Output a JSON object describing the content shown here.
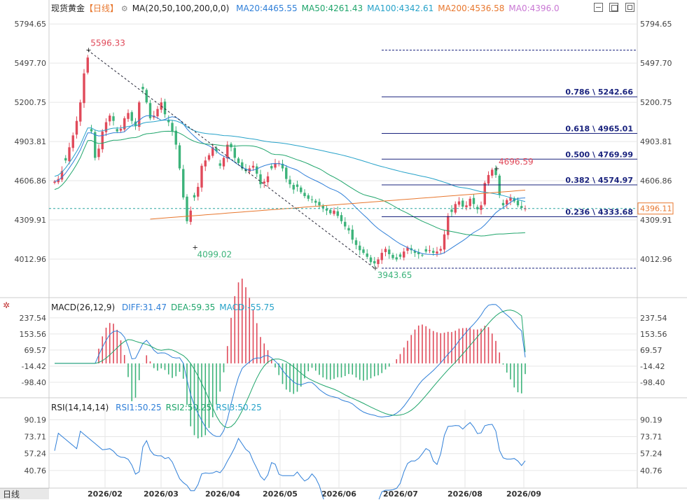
{
  "header": {
    "symbol": "现货黄金",
    "period_tag": "【日线】",
    "ma_label": "MA(20,50,100,200,0,0)",
    "ma_items": [
      {
        "text": "MA20:4465.55",
        "color": "#2f7fd8"
      },
      {
        "text": "MA50:4261.43",
        "color": "#1fa56b"
      },
      {
        "text": "MA100:4342.61",
        "color": "#26a2c9"
      },
      {
        "text": "MA200:4536.58",
        "color": "#e8772e"
      },
      {
        "text": "MA0:4396.0",
        "color": "#c978d4"
      }
    ]
  },
  "macd_header": {
    "label": "MACD(26,12,9)",
    "items": [
      {
        "text": "DIFF:31.47",
        "color": "#2f7fd8"
      },
      {
        "text": "DEA:59.35",
        "color": "#1fa56b"
      },
      {
        "text": "MACD:-55.75",
        "color": "#26a2c9"
      }
    ]
  },
  "rsi_header": {
    "label": "RSI(14,14,14)",
    "items": [
      {
        "text": "RSI1:50.25",
        "color": "#2f7fd8"
      },
      {
        "text": "RSI2:50.25",
        "color": "#1fa56b"
      },
      {
        "text": "RSI3:50.25",
        "color": "#26a2c9"
      }
    ]
  },
  "bottom_tab": "日线",
  "colors": {
    "up": "#e04a5a",
    "down": "#3cb37a",
    "grid": "#e6e6e6",
    "axis_text": "#444",
    "fib": "#1a237e"
  },
  "chart_data": {
    "type": "candlestick",
    "price_axis": {
      "ticks": [
        "5794.65",
        "5497.70",
        "5200.75",
        "4903.81",
        "4606.86",
        "4309.91",
        "4012.96"
      ],
      "range": [
        3880,
        5870
      ]
    },
    "current_price": "4396.11",
    "x_labels": [
      "2026/02",
      "2026/03",
      "2026/04",
      "2026/05",
      "2026/06",
      "2026/07",
      "2026/08",
      "2026/09"
    ],
    "annotations": [
      {
        "label": "5596.33",
        "kind": "high"
      },
      {
        "label": "4099.02",
        "kind": "low"
      },
      {
        "label": "3943.65",
        "kind": "low"
      },
      {
        "label": "4696.59",
        "kind": "high"
      }
    ],
    "fib_levels": [
      {
        "ratio": "0.786",
        "value": "5242.66"
      },
      {
        "ratio": "0.618",
        "value": "4965.01"
      },
      {
        "ratio": "0.500",
        "value": "4769.99"
      },
      {
        "ratio": "0.382",
        "value": "4574.97"
      },
      {
        "ratio": "0.236",
        "value": "4333.68"
      }
    ],
    "closes": [
      4600,
      4620,
      4680,
      4760,
      4860,
      4950,
      5060,
      5200,
      5420,
      5540,
      4980,
      4780,
      4850,
      4980,
      5050,
      5100,
      5060,
      4980,
      5000,
      5080,
      5120,
      5060,
      5020,
      5200,
      5300,
      5200,
      5080,
      5100,
      5150,
      5200,
      5110,
      5050,
      4980,
      4880,
      4700,
      4480,
      4300,
      4380,
      4480,
      4560,
      4720,
      4760,
      4800,
      4860,
      4830,
      4720,
      4780,
      4880,
      4860,
      4780,
      4740,
      4700,
      4680,
      4700,
      4720,
      4660,
      4580,
      4600,
      4640,
      4700,
      4740,
      4740,
      4700,
      4620,
      4580,
      4540,
      4560,
      4520,
      4490,
      4470,
      4460,
      4440,
      4420,
      4400,
      4380,
      4360,
      4380,
      4340,
      4300,
      4260,
      4230,
      4160,
      4120,
      4080,
      4060,
      4030,
      3990,
      3980,
      4010,
      4060,
      4090,
      4050,
      4020,
      4010,
      4030,
      4070,
      4100,
      4080,
      4060,
      4050,
      4040,
      4070,
      4080,
      4060,
      4070,
      4090,
      4200,
      4340,
      4370,
      4430,
      4450,
      4410,
      4420,
      4470,
      4430,
      4390,
      4420,
      4590,
      4650,
      4690,
      4650,
      4500,
      4420,
      4460,
      4480,
      4450,
      4420,
      4400,
      4396
    ],
    "macd": {
      "axis_ticks": [
        "237.54",
        "153.56",
        "69.57",
        "-14.42",
        "-98.40"
      ],
      "range": [
        -150,
        270
      ],
      "diff_last": 31.47,
      "dea_last": 59.35,
      "hist_last": -55.75
    },
    "rsi": {
      "axis_ticks": [
        "90.19",
        "73.71",
        "57.24",
        "40.76"
      ],
      "range": [
        25,
        100
      ],
      "last": 50.25
    }
  }
}
